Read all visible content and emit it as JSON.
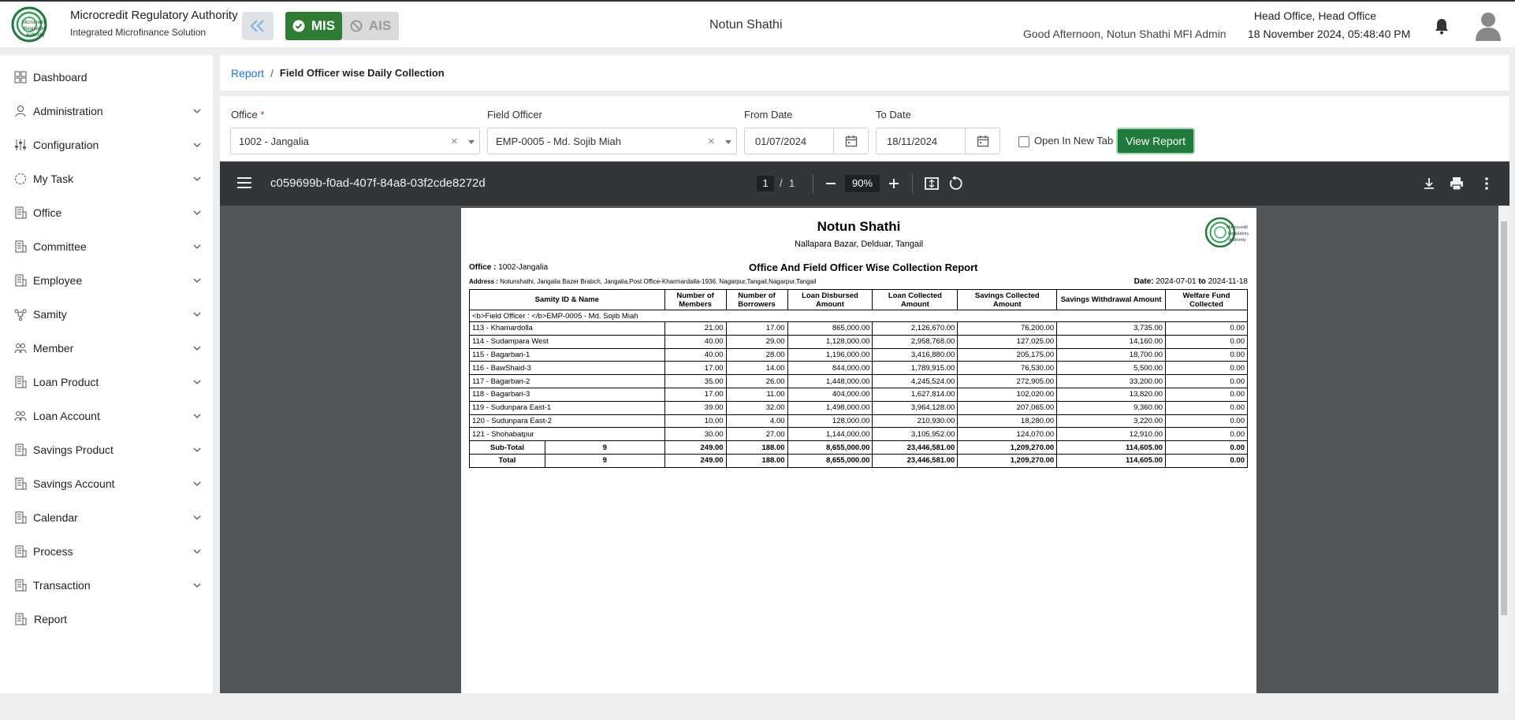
{
  "header": {
    "logo_text": "Microcredit Regulatory Authority",
    "app_title": "Microcredit Regulatory Authority",
    "app_subtitle": "Integrated Microfinance Solution",
    "mis_label": "MIS",
    "ais_label": "AIS",
    "center_title": "Notun Shathi",
    "office": "Head Office, Head Office",
    "greeting": "Good Afternoon, Notun Shathi MFI Admin",
    "datetime": "18 November 2024, 05:48:40 PM"
  },
  "sidebar": {
    "items": [
      {
        "label": "Dashboard",
        "icon": "dashboard-icon"
      },
      {
        "label": "Administration",
        "icon": "admin-icon"
      },
      {
        "label": "Configuration",
        "icon": "config-icon"
      },
      {
        "label": "My Task",
        "icon": "task-icon"
      },
      {
        "label": "Office",
        "icon": "office-icon"
      },
      {
        "label": "Committee",
        "icon": "committee-icon"
      },
      {
        "label": "Employee",
        "icon": "employee-icon"
      },
      {
        "label": "Samity",
        "icon": "samity-icon"
      },
      {
        "label": "Member",
        "icon": "member-icon"
      },
      {
        "label": "Loan Product",
        "icon": "loan-product-icon"
      },
      {
        "label": "Loan Account",
        "icon": "loan-account-icon"
      },
      {
        "label": "Savings Product",
        "icon": "savings-product-icon"
      },
      {
        "label": "Savings Account",
        "icon": "savings-account-icon"
      },
      {
        "label": "Calendar",
        "icon": "calendar-icon"
      },
      {
        "label": "Process",
        "icon": "process-icon"
      },
      {
        "label": "Transaction",
        "icon": "transaction-icon"
      },
      {
        "label": "Report",
        "icon": "report-icon"
      }
    ]
  },
  "breadcrumb": {
    "root": "Report",
    "separator": "/",
    "current": "Field Officer wise Daily Collection"
  },
  "filters": {
    "office_label": "Office",
    "office_required": "*",
    "office_value": "1002 - Jangalia",
    "officer_label": "Field Officer",
    "officer_value": "EMP-0005 - Md. Sojib Miah",
    "from_label": "From Date",
    "from_value": "01/07/2024",
    "to_label": "To Date",
    "to_value": "18/11/2024",
    "new_tab_label": "Open In New Tab",
    "view_button": "View Report"
  },
  "pdf": {
    "filename": "c059699b-f0ad-407f-84a8-03f2cde8272d",
    "page_current": "1",
    "page_sep": "/",
    "page_total": "1",
    "zoom": "90%"
  },
  "report": {
    "org_name": "Notun Shathi",
    "org_address": "Nallapara Bazar, Delduar, Tangail",
    "logo_text": "Microcredit Regulatory Authority",
    "office_label": "Office :",
    "office_value": "1002-Jangalia",
    "report_title": "Office And Field Officer Wise Collection Report",
    "address_label": "Address :",
    "address_value": "Notunshathi, Jangalia Bazer Brabch, Jangalia,Post Office-Kharmardalla-1936, Nagarpur,Tangail,Nagarpur,Tangail",
    "date_label": "Date:",
    "date_from": "2024-07-01",
    "date_to_word": "to",
    "date_to": "2024-11-18",
    "columns": [
      "Samity ID & Name",
      "Number of Members",
      "Number of Borrowers",
      "Loan Disbursed Amount",
      "Loan Collected Amount",
      "Savings Collected Amount",
      "Savings Withdrawal Amount",
      "Welfare Fund Collected"
    ],
    "group_label": "<b>Field Officer : </b>EMP-0005 - Md. Sojib Miah",
    "rows": [
      [
        "113 - Khamardolla",
        "21.00",
        "17.00",
        "865,000.00",
        "2,126,670.00",
        "76,200.00",
        "3,735.00",
        "0.00"
      ],
      [
        "114 - Sudampara West",
        "40.00",
        "29.00",
        "1,128,000.00",
        "2,958,768.00",
        "127,025.00",
        "14,160.00",
        "0.00"
      ],
      [
        "115 - Bagarbari-1",
        "40.00",
        "28.00",
        "1,196,000.00",
        "3,416,880.00",
        "205,175.00",
        "18,700.00",
        "0.00"
      ],
      [
        "116 - BawShaid-3",
        "17.00",
        "14.00",
        "844,000.00",
        "1,789,915.00",
        "76,530.00",
        "5,500.00",
        "0.00"
      ],
      [
        "117 - Bagarbari-2",
        "35.00",
        "26.00",
        "1,448,000.00",
        "4,245,524.00",
        "272,905.00",
        "33,200.00",
        "0.00"
      ],
      [
        "118 - Bagarbari-3",
        "17.00",
        "11.00",
        "404,000.00",
        "1,627,814.00",
        "102,020.00",
        "13,820.00",
        "0.00"
      ],
      [
        "119 - Sudunpara East-1",
        "39.00",
        "32.00",
        "1,498,000.00",
        "3,964,128.00",
        "207,065.00",
        "9,360.00",
        "0.00"
      ],
      [
        "120 - Sudunpara East-2",
        "10.00",
        "4.00",
        "128,000.00",
        "210,930.00",
        "18,280.00",
        "3,220.00",
        "0.00"
      ],
      [
        "121 - Shohabatpur",
        "30.00",
        "27.00",
        "1,144,000.00",
        "3,105,952.00",
        "124,070.00",
        "12,910.00",
        "0.00"
      ]
    ],
    "subtotal": [
      "Sub-Total",
      "9",
      "249.00",
      "188.00",
      "8,655,000.00",
      "23,446,581.00",
      "1,209,270.00",
      "114,605.00",
      "0.00"
    ],
    "total": [
      "Total",
      "9",
      "249.00",
      "188.00",
      "8,655,000.00",
      "23,446,581.00",
      "1,209,270.00",
      "114,605.00",
      "0.00"
    ]
  }
}
